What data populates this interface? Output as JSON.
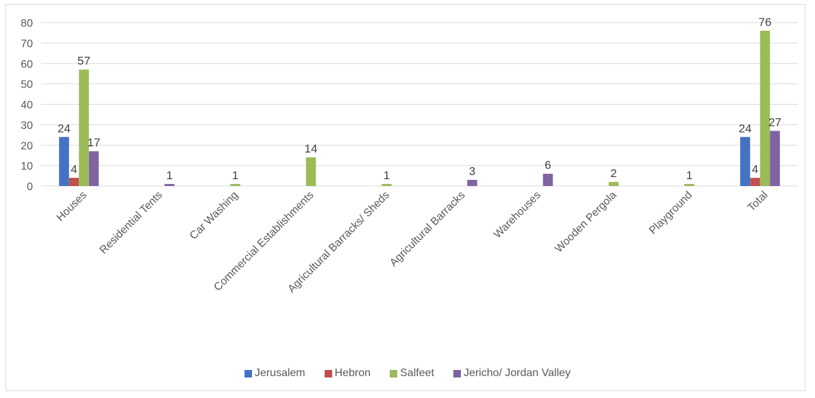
{
  "chart_data": {
    "type": "bar",
    "categories": [
      "Houses",
      "Residential Tents",
      "Car Washing",
      "Commercial Establishments",
      "Agricultural Barracks/ Sheds",
      "Agricultural Barracks",
      "Warehouses",
      "Wooden Pergola",
      "Playground",
      "Total"
    ],
    "series": [
      {
        "name": "Jerusalem",
        "color": "#4472C4",
        "values": [
          24,
          null,
          null,
          null,
          null,
          null,
          null,
          null,
          null,
          24
        ]
      },
      {
        "name": "Hebron",
        "color": "#C0504D",
        "values": [
          4,
          null,
          null,
          null,
          null,
          null,
          null,
          null,
          null,
          4
        ]
      },
      {
        "name": "Salfeet",
        "color": "#9BBB59",
        "values": [
          57,
          null,
          1,
          14,
          1,
          null,
          null,
          2,
          1,
          76
        ]
      },
      {
        "name": "Jericho/ Jordan Valley",
        "color": "#8064A2",
        "values": [
          17,
          1,
          null,
          null,
          null,
          3,
          6,
          null,
          null,
          27
        ]
      }
    ],
    "ylim": [
      0,
      80
    ],
    "yticks": [
      0,
      10,
      20,
      30,
      40,
      50,
      60,
      70,
      80
    ],
    "grid": true,
    "legend_position": "bottom",
    "title": "",
    "xlabel": "",
    "ylabel": ""
  }
}
